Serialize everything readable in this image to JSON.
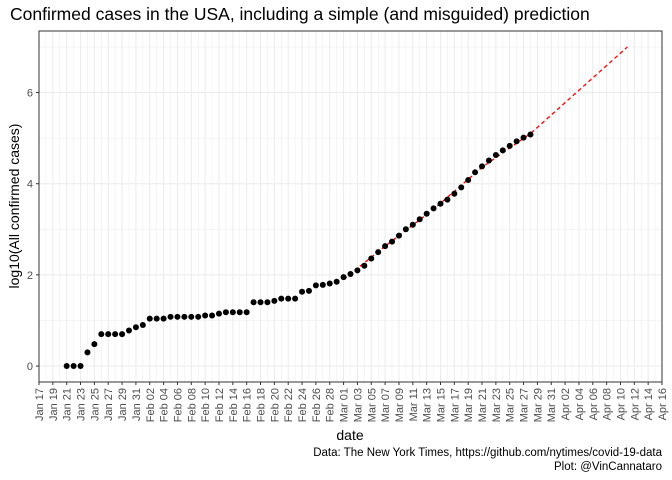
{
  "chart_data": {
    "type": "scatter",
    "title": "Confirmed cases in the USA, including a simple (and misguided) prediction",
    "xlabel": "date",
    "ylabel": "log10(All confirmed cases)",
    "caption": [
      "Data: The New York Times, https://github.com/nytimes/covid-19-data",
      "Plot: @VinCannataro"
    ],
    "x_tick_labels": [
      "Jan 17",
      "Jan 19",
      "Jan 21",
      "Jan 23",
      "Jan 25",
      "Jan 27",
      "Jan 29",
      "Jan 31",
      "Feb 02",
      "Feb 04",
      "Feb 06",
      "Feb 08",
      "Feb 10",
      "Feb 12",
      "Feb 14",
      "Feb 16",
      "Feb 18",
      "Feb 20",
      "Feb 22",
      "Feb 24",
      "Feb 26",
      "Feb 28",
      "Mar 01",
      "Mar 03",
      "Mar 05",
      "Mar 07",
      "Mar 09",
      "Mar 11",
      "Mar 13",
      "Mar 15",
      "Mar 17",
      "Mar 19",
      "Mar 21",
      "Mar 23",
      "Mar 25",
      "Mar 27",
      "Mar 29",
      "Mar 31",
      "Apr 02",
      "Apr 04",
      "Apr 06",
      "Apr 08",
      "Apr 10",
      "Apr 12",
      "Apr 14",
      "Apr 16"
    ],
    "xlim": [
      "2020-01-17",
      "2020-04-16"
    ],
    "ylim": [
      -0.35,
      7.35
    ],
    "y_ticks": [
      0,
      2,
      4,
      6
    ],
    "grid": true,
    "theme": "bw",
    "colors": {
      "points": "#000000",
      "prediction": "#ff0000",
      "grid": "#ebebeb",
      "panel_border": "#333333"
    },
    "points": [
      [
        "2020-01-21",
        0.0
      ],
      [
        "2020-01-22",
        0.0
      ],
      [
        "2020-01-23",
        0.0
      ],
      [
        "2020-01-24",
        0.3
      ],
      [
        "2020-01-25",
        0.48
      ],
      [
        "2020-01-26",
        0.7
      ],
      [
        "2020-01-27",
        0.7
      ],
      [
        "2020-01-28",
        0.7
      ],
      [
        "2020-01-29",
        0.7
      ],
      [
        "2020-01-30",
        0.78
      ],
      [
        "2020-01-31",
        0.85
      ],
      [
        "2020-02-01",
        0.9
      ],
      [
        "2020-02-02",
        1.04
      ],
      [
        "2020-02-03",
        1.04
      ],
      [
        "2020-02-04",
        1.04
      ],
      [
        "2020-02-05",
        1.08
      ],
      [
        "2020-02-06",
        1.08
      ],
      [
        "2020-02-07",
        1.08
      ],
      [
        "2020-02-08",
        1.08
      ],
      [
        "2020-02-09",
        1.08
      ],
      [
        "2020-02-10",
        1.11
      ],
      [
        "2020-02-11",
        1.11
      ],
      [
        "2020-02-12",
        1.15
      ],
      [
        "2020-02-13",
        1.18
      ],
      [
        "2020-02-14",
        1.18
      ],
      [
        "2020-02-15",
        1.18
      ],
      [
        "2020-02-16",
        1.18
      ],
      [
        "2020-02-17",
        1.4
      ],
      [
        "2020-02-18",
        1.4
      ],
      [
        "2020-02-19",
        1.4
      ],
      [
        "2020-02-20",
        1.43
      ],
      [
        "2020-02-21",
        1.48
      ],
      [
        "2020-02-22",
        1.48
      ],
      [
        "2020-02-23",
        1.48
      ],
      [
        "2020-02-24",
        1.63
      ],
      [
        "2020-02-25",
        1.65
      ],
      [
        "2020-02-26",
        1.77
      ],
      [
        "2020-02-27",
        1.78
      ],
      [
        "2020-02-28",
        1.81
      ],
      [
        "2020-02-29",
        1.85
      ],
      [
        "2020-03-01",
        1.95
      ],
      [
        "2020-03-02",
        2.02
      ],
      [
        "2020-03-03",
        2.1
      ],
      [
        "2020-03-04",
        2.2
      ],
      [
        "2020-03-05",
        2.36
      ],
      [
        "2020-03-06",
        2.5
      ],
      [
        "2020-03-07",
        2.63
      ],
      [
        "2020-03-08",
        2.73
      ],
      [
        "2020-03-09",
        2.86
      ],
      [
        "2020-03-10",
        3.0
      ],
      [
        "2020-03-11",
        3.1
      ],
      [
        "2020-03-12",
        3.22
      ],
      [
        "2020-03-13",
        3.34
      ],
      [
        "2020-03-14",
        3.46
      ],
      [
        "2020-03-15",
        3.56
      ],
      [
        "2020-03-16",
        3.65
      ],
      [
        "2020-03-17",
        3.78
      ],
      [
        "2020-03-18",
        3.92
      ],
      [
        "2020-03-19",
        4.08
      ],
      [
        "2020-03-20",
        4.25
      ],
      [
        "2020-03-21",
        4.38
      ],
      [
        "2020-03-22",
        4.51
      ],
      [
        "2020-03-23",
        4.63
      ],
      [
        "2020-03-24",
        4.73
      ],
      [
        "2020-03-25",
        4.83
      ],
      [
        "2020-03-26",
        4.93
      ],
      [
        "2020-03-27",
        5.01
      ],
      [
        "2020-03-28",
        5.08
      ]
    ],
    "prediction_line": {
      "style": "dashed",
      "points": [
        [
          "2020-03-01",
          1.9
        ],
        [
          "2020-03-07",
          2.63
        ],
        [
          "2020-03-14",
          3.44
        ],
        [
          "2020-03-21",
          4.36
        ],
        [
          "2020-03-28",
          5.1
        ],
        [
          "2020-04-04",
          6.05
        ],
        [
          "2020-04-11",
          7.0
        ]
      ]
    }
  }
}
